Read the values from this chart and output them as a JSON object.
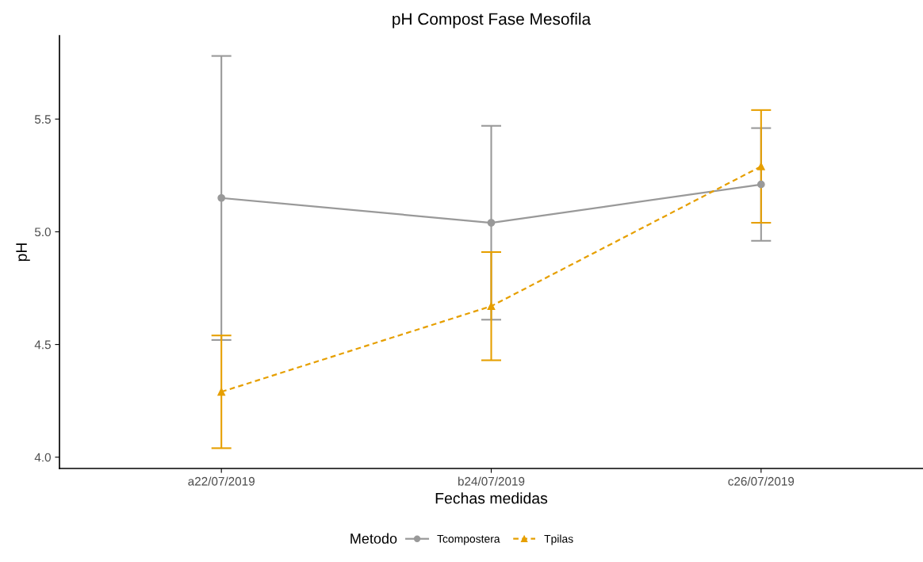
{
  "chart_data": {
    "type": "line",
    "title": "pH Compost Fase Mesofila",
    "xlabel": "Fechas medidas",
    "ylabel": "pH",
    "legend_title": "Metodo",
    "categories": [
      "a22/07/2019",
      "b24/07/2019",
      "c26/07/2019"
    ],
    "series": [
      {
        "name": "Tcompostera",
        "color": "#999999",
        "values": [
          5.15,
          5.04,
          5.21
        ],
        "errors": [
          [
            4.52,
            5.78
          ],
          [
            4.61,
            5.47
          ],
          [
            4.96,
            5.46
          ]
        ],
        "marker": "circle",
        "line_style": "solid"
      },
      {
        "name": "Tpilas",
        "color": "#e69f00",
        "values": [
          4.29,
          4.67,
          5.29
        ],
        "errors": [
          [
            4.04,
            4.54
          ],
          [
            4.43,
            4.91
          ],
          [
            5.04,
            5.54
          ]
        ],
        "marker": "triangle",
        "line_style": "dashed"
      }
    ],
    "ylim": [
      3.95,
      5.87
    ],
    "yticks": [
      {
        "value": 4.0,
        "label": "4.0"
      },
      {
        "value": 4.5,
        "label": "4.5"
      },
      {
        "value": 5.0,
        "label": "5.0"
      },
      {
        "value": 5.5,
        "label": "5.5"
      }
    ],
    "grid": false,
    "legend": "bottom"
  }
}
